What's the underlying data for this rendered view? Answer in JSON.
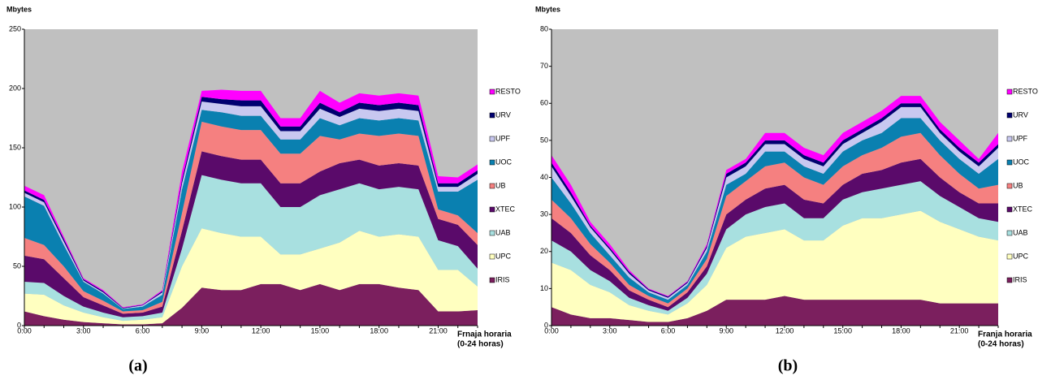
{
  "chart_data": [
    {
      "type": "stacked_area",
      "caption": "(a)",
      "y_label": "Mbytes",
      "x_label": [
        "Frnaja horaria",
        "(0-24 horas)"
      ],
      "categories": [
        "0:00",
        null,
        null,
        "3:00",
        null,
        null,
        "6:00",
        null,
        null,
        "9:00",
        null,
        null,
        "12:00",
        null,
        null,
        "15:00",
        null,
        null,
        "18:00",
        null,
        null,
        "21:00",
        null,
        null
      ],
      "ylim": [
        0,
        250
      ],
      "yticks": [
        0,
        50,
        100,
        150,
        200,
        250
      ],
      "background": "#c0c0c0",
      "legend": "right",
      "series": [
        {
          "name": "IRIS",
          "color": "#7b1f5e",
          "values": [
            12,
            8,
            5,
            3,
            2,
            1,
            1,
            2,
            15,
            32,
            30,
            30,
            35,
            35,
            30,
            35,
            30,
            35,
            35,
            32,
            30,
            12,
            12,
            13
          ]
        },
        {
          "name": "UPC",
          "color": "#ffffc0",
          "values": [
            15,
            18,
            12,
            8,
            5,
            3,
            4,
            5,
            35,
            50,
            48,
            45,
            40,
            25,
            30,
            30,
            40,
            45,
            40,
            45,
            45,
            35,
            35,
            20
          ]
        },
        {
          "name": "UAB",
          "color": "#a8e0e0",
          "values": [
            10,
            10,
            8,
            5,
            4,
            3,
            3,
            4,
            15,
            45,
            45,
            45,
            45,
            40,
            40,
            45,
            45,
            40,
            40,
            40,
            40,
            25,
            20,
            15
          ]
        },
        {
          "name": "XTEC",
          "color": "#5a0a6a",
          "values": [
            22,
            20,
            15,
            8,
            6,
            3,
            3,
            5,
            15,
            20,
            20,
            20,
            20,
            20,
            20,
            20,
            22,
            20,
            20,
            20,
            20,
            18,
            18,
            20
          ]
        },
        {
          "name": "UB",
          "color": "#f58080",
          "values": [
            15,
            12,
            10,
            5,
            4,
            2,
            2,
            4,
            15,
            25,
            25,
            25,
            25,
            25,
            25,
            30,
            20,
            22,
            25,
            25,
            25,
            8,
            8,
            10
          ]
        },
        {
          "name": "UOC",
          "color": "#0a80b0",
          "values": [
            35,
            33,
            18,
            8,
            6,
            2,
            3,
            6,
            20,
            10,
            12,
            12,
            12,
            12,
            12,
            15,
            12,
            13,
            13,
            13,
            13,
            15,
            20,
            45
          ]
        },
        {
          "name": "UPF",
          "color": "#c8c8f0",
          "values": [
            3,
            3,
            3,
            1,
            1,
            0.5,
            1,
            2,
            5,
            7,
            7,
            8,
            8,
            7,
            7,
            8,
            7,
            8,
            8,
            8,
            8,
            4,
            4,
            5
          ]
        },
        {
          "name": "URV",
          "color": "#000070",
          "values": [
            2,
            2,
            2,
            1,
            1,
            0.5,
            0.5,
            1,
            3,
            4,
            4,
            5,
            5,
            4,
            4,
            5,
            4,
            5,
            5,
            5,
            5,
            3,
            3,
            3
          ]
        },
        {
          "name": "RESTO",
          "color": "#ff00ff",
          "values": [
            4,
            4,
            2,
            1,
            1,
            0.5,
            0.5,
            1,
            7,
            5,
            8,
            8,
            8,
            7,
            7,
            10,
            8,
            8,
            8,
            8,
            8,
            6,
            5,
            5
          ]
        }
      ]
    },
    {
      "type": "stacked_area",
      "caption": "(b)",
      "y_label": "Mbytes",
      "x_label": [
        "Franja horaria",
        "(0-24 horas)"
      ],
      "categories": [
        "0:00",
        null,
        null,
        "3:00",
        null,
        null,
        "6:00",
        null,
        null,
        "9:00",
        null,
        null,
        "12:00",
        null,
        null,
        "15:00",
        null,
        null,
        "18:00",
        null,
        null,
        "21:00",
        null,
        null
      ],
      "ylim": [
        0,
        80
      ],
      "yticks": [
        0,
        10,
        20,
        30,
        40,
        50,
        60,
        70,
        80
      ],
      "background": "#c0c0c0",
      "legend": "right",
      "series": [
        {
          "name": "IRIS",
          "color": "#7b1f5e",
          "values": [
            5,
            3,
            2,
            2,
            1.5,
            1,
            1,
            2,
            4,
            7,
            7,
            7,
            8,
            7,
            7,
            7,
            7,
            7,
            7,
            7,
            6,
            6,
            6,
            6
          ]
        },
        {
          "name": "UPC",
          "color": "#ffffc0",
          "values": [
            12,
            12,
            9,
            7,
            4,
            3,
            2,
            4,
            7,
            14,
            17,
            18,
            18,
            16,
            16,
            20,
            22,
            22,
            23,
            24,
            22,
            20,
            18,
            17
          ]
        },
        {
          "name": "UAB",
          "color": "#a8e0e0",
          "values": [
            6,
            5,
            4,
            3,
            2,
            1.5,
            1,
            1.5,
            3,
            5,
            6,
            7,
            7,
            6,
            6,
            7,
            7,
            8,
            8,
            8,
            7,
            6,
            5,
            5
          ]
        },
        {
          "name": "XTEC",
          "color": "#5a0a6a",
          "values": [
            6,
            5,
            4,
            3,
            2,
            1.5,
            1,
            1.5,
            2,
            4,
            4,
            5,
            5,
            5,
            4,
            4,
            5,
            5,
            6,
            6,
            5,
            4,
            4,
            5
          ]
        },
        {
          "name": "UB",
          "color": "#f58080",
          "values": [
            5,
            4,
            3,
            2,
            1.5,
            1,
            1,
            1,
            2,
            5,
            5,
            6,
            6,
            6,
            5,
            5,
            5,
            6,
            7,
            7,
            6,
            5,
            4,
            5
          ]
        },
        {
          "name": "UOC",
          "color": "#0a80b0",
          "values": [
            6,
            4,
            3,
            2,
            2,
            1,
            1,
            1,
            2,
            3,
            2,
            4,
            3,
            3,
            3,
            4,
            4,
            4,
            5,
            4,
            4,
            4,
            4,
            7
          ]
        },
        {
          "name": "UPF",
          "color": "#c8c8f0",
          "values": [
            3,
            2,
            1.5,
            1.5,
            1,
            0.5,
            0.5,
            0.5,
            1,
            2,
            2,
            2,
            2,
            2,
            2,
            2,
            2,
            3,
            3,
            3,
            2,
            2,
            2,
            3
          ]
        },
        {
          "name": "URV",
          "color": "#000070",
          "values": [
            1,
            1,
            0.5,
            0.5,
            0.5,
            0.3,
            0.3,
            0.3,
            0.5,
            1,
            1,
            1,
            1,
            1,
            1,
            1,
            1,
            1,
            1,
            1,
            1,
            1,
            1,
            1
          ]
        },
        {
          "name": "RESTO",
          "color": "#ff00ff",
          "values": [
            2,
            2,
            1,
            1,
            0.5,
            0.2,
            0.2,
            0.2,
            0.5,
            1,
            1,
            2,
            2,
            2,
            2,
            2,
            2,
            2,
            2,
            2,
            2,
            2,
            1,
            3
          ]
        }
      ]
    }
  ]
}
